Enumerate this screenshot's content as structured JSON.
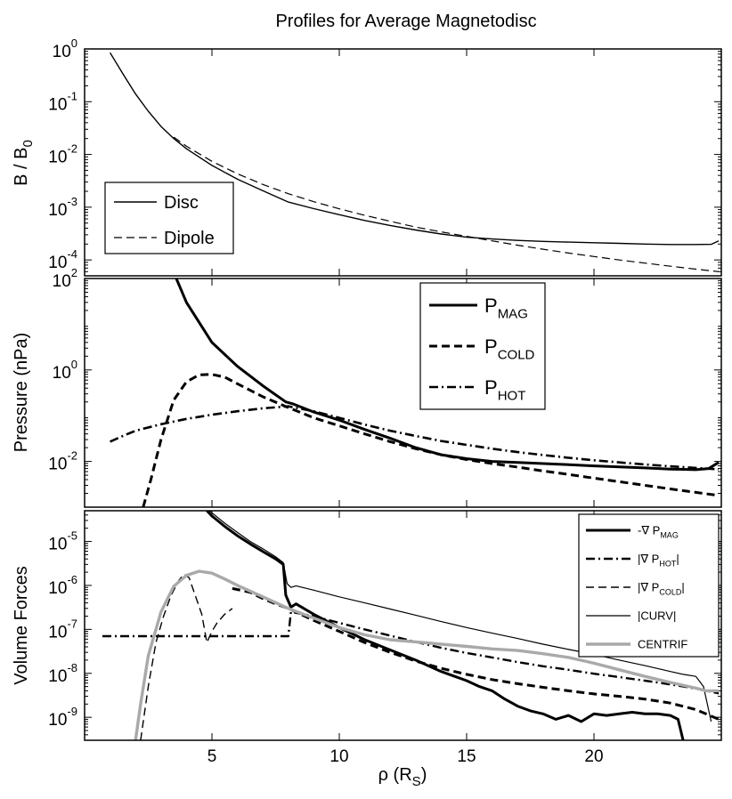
{
  "figure_title": "Profiles for Average Magnetodisc",
  "chart_data": [
    {
      "type": "line",
      "panel": "top",
      "title": "Profiles for Average Magnetodisc",
      "xlabel": "",
      "ylabel": "B / B0",
      "ylabel_main": "B / B",
      "ylabel_sub": "0",
      "yscale": "log",
      "xlim": [
        0,
        25
      ],
      "ylim": [
        5e-05,
        1
      ],
      "y_ticks": [
        {
          "value": 1,
          "exp": "0"
        },
        {
          "value": 0.1,
          "exp": "-1"
        },
        {
          "value": 0.01,
          "exp": "-2"
        },
        {
          "value": 0.001,
          "exp": "-3"
        },
        {
          "value": 0.0001,
          "exp": "-4"
        }
      ],
      "legend_position": "lower-left",
      "series": [
        {
          "name": "Disc",
          "legend_main": "Disc",
          "legend_sub": "",
          "color": "#000000",
          "style": "solid",
          "width": 1.4,
          "x": [
            1.0,
            1.5,
            2.0,
            2.5,
            3.0,
            3.5,
            4.0,
            5.0,
            6.0,
            7.0,
            8.0,
            9.0,
            10.0,
            11.0,
            12.0,
            13.0,
            14.0,
            15.0,
            16.0,
            17.0,
            18.0,
            19.0,
            20.0,
            21.0,
            22.0,
            23.0,
            24.0,
            24.6,
            24.9
          ],
          "y": [
            0.85,
            0.34,
            0.14,
            0.066,
            0.034,
            0.02,
            0.0128,
            0.0062,
            0.0034,
            0.00205,
            0.00125,
            0.00094,
            0.00072,
            0.00056,
            0.00045,
            0.00037,
            0.00031,
            0.00027,
            0.00025,
            0.000235,
            0.000225,
            0.000218,
            0.000212,
            0.000206,
            0.0002,
            0.000196,
            0.000196,
            0.000198,
            0.00023
          ]
        },
        {
          "name": "Dipole",
          "legend_main": "Dipole",
          "legend_sub": "",
          "color": "#000000",
          "style": "dashed",
          "width": 1.2,
          "x": [
            3.5,
            4.0,
            5.0,
            6.0,
            7.0,
            8.0,
            9.0,
            10.0,
            11.0,
            12.0,
            13.0,
            14.0,
            15.0,
            16.0,
            17.0,
            18.0,
            19.0,
            20.0,
            21.0,
            22.0,
            23.0,
            24.0,
            24.9
          ],
          "y": [
            0.0213,
            0.0143,
            0.0074,
            0.0043,
            0.0027,
            0.0018,
            0.00127,
            0.00093,
            0.0007,
            0.00054,
            0.00042,
            0.00034,
            0.00028,
            0.00023,
            0.00019,
            0.00016,
            0.000135,
            0.000116,
            0.0001,
            8.7e-05,
            7.6e-05,
            6.7e-05,
            6e-05
          ]
        }
      ]
    },
    {
      "type": "line",
      "panel": "middle",
      "xlabel": "",
      "ylabel": "Pressure (nPa)",
      "yscale": "log",
      "xlim": [
        0,
        25
      ],
      "ylim": [
        0.001,
        100
      ],
      "y_ticks": [
        {
          "value": 100,
          "exp": "2"
        },
        {
          "value": 1,
          "exp": "0"
        },
        {
          "value": 0.01,
          "exp": "-2"
        }
      ],
      "legend_position": "top-right",
      "series": [
        {
          "name": "P_MAG",
          "legend_main": "P",
          "legend_sub": "MAG",
          "color": "#000000",
          "style": "solid",
          "width": 3,
          "x": [
            3.6,
            4.0,
            5.0,
            6.0,
            7.0,
            7.9,
            8.2,
            9.0,
            10.0,
            11.0,
            12.0,
            13.0,
            14.0,
            15.0,
            16.0,
            17.0,
            18.0,
            19.0,
            20.0,
            21.0,
            22.0,
            23.0,
            24.0,
            24.5,
            24.9
          ],
          "y": [
            100,
            30,
            4,
            1.2,
            0.45,
            0.2,
            0.18,
            0.12,
            0.08,
            0.05,
            0.032,
            0.02,
            0.014,
            0.0115,
            0.01,
            0.0095,
            0.009,
            0.0085,
            0.008,
            0.0076,
            0.0072,
            0.0068,
            0.0066,
            0.007,
            0.0095
          ]
        },
        {
          "name": "P_COLD",
          "legend_main": "P",
          "legend_sub": "COLD",
          "color": "#000000",
          "style": "dashed",
          "width": 3,
          "x": [
            2.3,
            2.6,
            3.0,
            3.5,
            4.0,
            4.5,
            5.0,
            5.5,
            6.0,
            7.0,
            8.0,
            9.0,
            10.0,
            11.0,
            12.0,
            13.0,
            14.0,
            15.0,
            16.0,
            17.0,
            18.0,
            19.0,
            20.0,
            21.0,
            22.0,
            23.0,
            24.0,
            24.9
          ],
          "y": [
            0.001,
            0.004,
            0.03,
            0.22,
            0.55,
            0.78,
            0.8,
            0.7,
            0.5,
            0.26,
            0.15,
            0.09,
            0.06,
            0.04,
            0.027,
            0.019,
            0.014,
            0.011,
            0.009,
            0.0075,
            0.0062,
            0.0052,
            0.0043,
            0.0036,
            0.003,
            0.0025,
            0.0021,
            0.0018
          ]
        },
        {
          "name": "P_HOT",
          "legend_main": "P",
          "legend_sub": "HOT",
          "color": "#000000",
          "style": "dashdot",
          "width": 2.6,
          "x": [
            1.0,
            1.5,
            2.0,
            3.0,
            4.0,
            5.0,
            6.0,
            7.0,
            8.0,
            9.0,
            10.0,
            11.0,
            12.0,
            13.0,
            14.0,
            15.0,
            16.0,
            17.0,
            18.0,
            19.0,
            20.0,
            21.0,
            22.0,
            23.0,
            24.0,
            24.9
          ],
          "y": [
            0.027,
            0.036,
            0.047,
            0.065,
            0.085,
            0.105,
            0.125,
            0.145,
            0.16,
            0.125,
            0.09,
            0.064,
            0.047,
            0.036,
            0.028,
            0.023,
            0.019,
            0.016,
            0.0138,
            0.012,
            0.0106,
            0.0095,
            0.0086,
            0.0078,
            0.0072,
            0.0067
          ]
        }
      ]
    },
    {
      "type": "line",
      "panel": "bottom",
      "xlabel": "ρ (RS)",
      "xlabel_main": "ρ (R",
      "xlabel_sub": "S",
      "xlabel_close": ")",
      "ylabel": "Volume Forces",
      "yscale": "log",
      "xlim": [
        0,
        25
      ],
      "ylim": [
        3e-10,
        5e-05
      ],
      "x_ticks": [
        5,
        10,
        15,
        20
      ],
      "y_ticks": [
        {
          "value": 1e-05,
          "exp": "-5"
        },
        {
          "value": 1e-06,
          "exp": "-6"
        },
        {
          "value": 1e-07,
          "exp": "-7"
        },
        {
          "value": 1e-08,
          "exp": "-8"
        },
        {
          "value": 1e-09,
          "exp": "-9"
        }
      ],
      "legend_position": "top-right",
      "series": [
        {
          "name": "-∇ P_MAG",
          "legend_main": "-∇ P",
          "legend_sub": "MAG",
          "legend_close": "",
          "color": "#000000",
          "style": "solid",
          "width": 3,
          "x": [
            4.8,
            5.0,
            5.5,
            6.0,
            6.5,
            7.0,
            7.5,
            7.8,
            7.9,
            8.1,
            8.3,
            9.0,
            10.0,
            11.0,
            12.0,
            13.0,
            14.0,
            15.0,
            15.5,
            16.0,
            16.5,
            17.0,
            17.5,
            18.0,
            18.5,
            19.0,
            19.5,
            20.0,
            20.5,
            21.0,
            21.5,
            22.0,
            22.5,
            23.0,
            23.3,
            23.5
          ],
          "y": [
            5e-05,
            3.8e-05,
            2.2e-05,
            1.35e-05,
            8.8e-06,
            5.9e-06,
            4e-06,
            3e-06,
            6e-07,
            3.2e-07,
            3.8e-07,
            2.2e-07,
            1.1e-07,
            5.8e-08,
            3.4e-08,
            2e-08,
            1.1e-08,
            6.8e-09,
            5e-09,
            4e-09,
            2.6e-09,
            1.8e-09,
            1.4e-09,
            1.2e-09,
            9e-10,
            1.1e-09,
            8e-10,
            1.2e-09,
            1.1e-09,
            1.2e-09,
            1.3e-09,
            1.2e-09,
            1.2e-09,
            1.1e-09,
            9e-10,
            3e-10
          ]
        },
        {
          "name": "|∇ P_HOT|",
          "legend_main": "|∇ P",
          "legend_sub": "HOT",
          "legend_close": "|",
          "color": "#000000",
          "style": "dashdot",
          "width": 2.4,
          "x": [
            0.7,
            1.5,
            2.5,
            3.5,
            4.5,
            5.5,
            6.5,
            7.5,
            8.0,
            8.1,
            9.0,
            10.0,
            11.0,
            12.0,
            13.0,
            14.0,
            15.0,
            16.0,
            17.0,
            18.0,
            19.0,
            20.0,
            21.0,
            22.0,
            23.0,
            24.0,
            24.9
          ],
          "y": [
            7e-08,
            7e-08,
            7e-08,
            7e-08,
            7e-08,
            7e-08,
            7e-08,
            7e-08,
            7e-08,
            2.5e-07,
            2e-07,
            1.4e-07,
            1e-07,
            7.2e-08,
            5.2e-08,
            3.8e-08,
            2.9e-08,
            2.3e-08,
            1.8e-08,
            1.45e-08,
            1.2e-08,
            9.8e-09,
            8.2e-09,
            6.8e-09,
            5.6e-09,
            4.5e-09,
            3.5e-09
          ]
        },
        {
          "name": "|∇ P_COLD|",
          "legend_main": "|∇ P",
          "legend_sub": "COLD",
          "legend_close": "|",
          "color": "#000000",
          "style": "dashed",
          "width": 1.4,
          "x": [
            2.2,
            2.5,
            2.8,
            3.1,
            3.4,
            3.7,
            3.9,
            4.1,
            4.3,
            4.6,
            4.8,
            5.0,
            5.2,
            5.5,
            5.8
          ],
          "y": [
            3e-10,
            5e-09,
            5e-08,
            2e-07,
            6e-07,
            1.3e-06,
            1.8e-06,
            1.5e-06,
            7e-07,
            2.2e-07,
            5e-08,
            9e-08,
            1.4e-07,
            2.2e-07,
            3e-07
          ]
        },
        {
          "name": "|∇ P_COLD| (outer)",
          "legend_main": "",
          "legend_sub": "",
          "legend_close": "",
          "color": "#000000",
          "style": "dashed",
          "width": 3,
          "hide_legend": true,
          "x": [
            5.8,
            6.5,
            7.0,
            7.5,
            8.0,
            9.0,
            10.0,
            11.0,
            12.0,
            13.0,
            14.0,
            15.0,
            16.0,
            17.0,
            18.0,
            19.0,
            20.0,
            21.0,
            22.0,
            23.0,
            24.0,
            24.9
          ],
          "y": [
            8.5e-07,
            7e-07,
            5e-07,
            3.8e-07,
            3e-07,
            1.6e-07,
            9e-08,
            5e-08,
            3e-08,
            1.9e-08,
            1.3e-08,
            9.5e-09,
            7.2e-09,
            5.8e-09,
            4.8e-09,
            4e-09,
            3.4e-09,
            3e-09,
            2.6e-09,
            2.1e-09,
            1.5e-09,
            9e-10
          ]
        },
        {
          "name": "|CURV|",
          "legend_main": "|CURV|",
          "legend_sub": "",
          "legend_close": "",
          "color": "#000000",
          "style": "solid",
          "width": 1.2,
          "x": [
            4.9,
            5.0,
            5.5,
            6.0,
            6.5,
            7.0,
            7.5,
            7.8,
            7.95,
            8.1,
            8.3,
            9.0,
            10.0,
            11.0,
            12.0,
            13.0,
            14.0,
            15.0,
            16.0,
            17.0,
            18.0,
            19.0,
            20.0,
            21.0,
            22.0,
            23.0,
            23.5,
            24.0,
            24.3,
            24.6
          ],
          "y": [
            5e-05,
            4.5e-05,
            2.6e-05,
            1.6e-05,
            1e-05,
            6.8e-06,
            4.5e-06,
            3.3e-06,
            1.1e-06,
            9e-07,
            9.8e-07,
            7.8e-07,
            5.5e-07,
            4e-07,
            2.9e-07,
            2.1e-07,
            1.5e-07,
            1.1e-07,
            8.2e-08,
            6.2e-08,
            4.6e-08,
            3.5e-08,
            2.7e-08,
            2e-08,
            1.5e-08,
            1.1e-08,
            9.5e-09,
            8.5e-09,
            5e-09,
            8e-10
          ]
        },
        {
          "name": "CENTRIF",
          "legend_main": "CENTRIF",
          "legend_sub": "",
          "legend_close": "",
          "color": "#a9a9a9",
          "style": "solid",
          "width": 3.4,
          "x": [
            2.0,
            2.2,
            2.5,
            3.0,
            3.5,
            4.0,
            4.5,
            5.0,
            5.5,
            6.0,
            7.0,
            8.0,
            9.0,
            10.0,
            11.0,
            12.0,
            13.0,
            14.0,
            15.0,
            16.0,
            17.0,
            18.0,
            19.0,
            20.0,
            21.0,
            22.0,
            23.0,
            24.0,
            24.4,
            24.9
          ],
          "y": [
            3e-10,
            2e-09,
            2.5e-08,
            2.5e-07,
            9.5e-07,
            1.7e-06,
            2.1e-06,
            1.9e-06,
            1.4e-06,
            1e-06,
            5.5e-07,
            3e-07,
            1.8e-07,
            1.1e-07,
            7.5e-08,
            5.8e-08,
            5.2e-08,
            4.6e-08,
            4.1e-08,
            3.6e-08,
            3.3e-08,
            2.8e-08,
            2.3e-08,
            1.7e-08,
            1.2e-08,
            8.5e-09,
            6.2e-09,
            4.6e-09,
            4e-09,
            4e-09
          ]
        }
      ]
    }
  ]
}
